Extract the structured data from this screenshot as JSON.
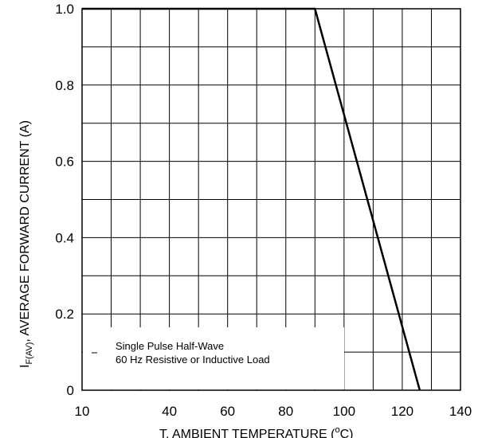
{
  "chart_data": {
    "type": "line",
    "xlabel_prefix": "T",
    "xlabel_text": ", AMBIENT TEMPERATURE (",
    "xlabel_unit_sup": "o",
    "xlabel_unit": "C)",
    "ylabel_prefix": "I",
    "ylabel_sub": "F(AV)",
    "ylabel_text": ", AVERAGE FORWARD CURRENT (A)",
    "x_ticks": [
      {
        "value": 10,
        "label": "10"
      },
      {
        "value": 40,
        "label": "40"
      },
      {
        "value": 60,
        "label": "60"
      },
      {
        "value": 80,
        "label": "80"
      },
      {
        "value": 100,
        "label": "100"
      },
      {
        "value": 120,
        "label": "120"
      },
      {
        "value": 140,
        "label": "140"
      }
    ],
    "y_ticks": [
      {
        "value": 0,
        "label": "0"
      },
      {
        "value": 0.2,
        "label": "0.2"
      },
      {
        "value": 0.4,
        "label": "0.4"
      },
      {
        "value": 0.6,
        "label": "0.6"
      },
      {
        "value": 0.8,
        "label": "0.8"
      },
      {
        "value": 1.0,
        "label": "1.0"
      }
    ],
    "x_grid": [
      10,
      20,
      30,
      40,
      50,
      60,
      70,
      80,
      90,
      100,
      110,
      120,
      130,
      140
    ],
    "y_grid": [
      0,
      0.1,
      0.2,
      0.3,
      0.4,
      0.5,
      0.6,
      0.7,
      0.8,
      0.9,
      1.0
    ],
    "xlim": [
      10,
      140
    ],
    "ylim": [
      0,
      1.0
    ],
    "grid": true,
    "series": [
      {
        "color": "#000000",
        "points": [
          [
            10,
            1.0
          ],
          [
            90,
            1.0
          ],
          [
            126,
            0
          ]
        ]
      }
    ],
    "annotation": {
      "line1": "Single Pulse Half-Wave",
      "line2": "60 Hz Resistive or Inductive Load"
    }
  }
}
